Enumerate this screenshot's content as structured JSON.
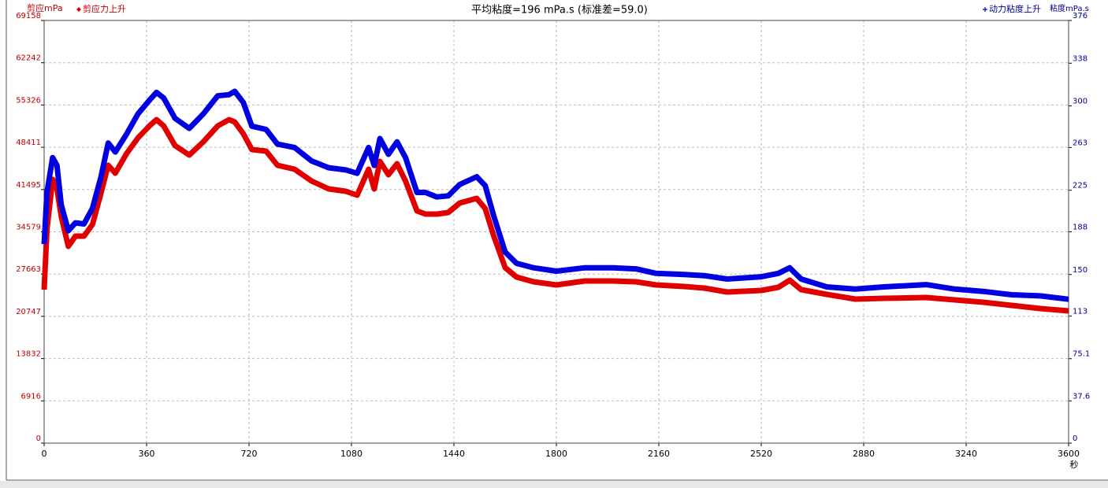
{
  "chart_data": {
    "type": "line",
    "title": "平均粘度=196 mPa.s  (标准差=59.0)",
    "ylabel": "剪应mPa",
    "y2label": "粘度mPa.s",
    "xlabel": "秒",
    "x": [
      0,
      10,
      30,
      45,
      60,
      85,
      110,
      140,
      170,
      200,
      225,
      250,
      290,
      330,
      370,
      395,
      420,
      460,
      510,
      560,
      610,
      650,
      670,
      700,
      730,
      780,
      820,
      880,
      940,
      1000,
      1060,
      1100,
      1140,
      1160,
      1180,
      1210,
      1240,
      1270,
      1310,
      1340,
      1380,
      1420,
      1460,
      1520,
      1550,
      1580,
      1620,
      1660,
      1720,
      1800,
      1900,
      2000,
      2080,
      2150,
      2250,
      2320,
      2400,
      2520,
      2580,
      2620,
      2660,
      2750,
      2850,
      2950,
      3100,
      3200,
      3300,
      3400,
      3500,
      3600
    ],
    "series": [
      {
        "name": "剪应力上升",
        "color": "#e00000",
        "marker": "diamond",
        "values": [
          25113,
          35000,
          43144,
          41598,
          37091,
          32197,
          33871,
          33871,
          35803,
          40954,
          45462,
          44174,
          47394,
          49970,
          51902,
          52932,
          51902,
          48682,
          47136,
          49326,
          51902,
          52932,
          52546,
          50614,
          48038,
          47780,
          45462,
          44818,
          42886,
          41598,
          41212,
          40567,
          44818,
          41598,
          46106,
          43917,
          45720,
          42886,
          37992,
          37477,
          37477,
          37735,
          39280,
          40052,
          38378,
          33871,
          28719,
          27174,
          26401,
          25886,
          26530,
          26530,
          26401,
          25886,
          25628,
          25371,
          24727,
          24984,
          25499,
          26659,
          25113,
          24341,
          23568,
          23697,
          23826,
          23439,
          23053,
          22538,
          22023,
          21636
        ]
      },
      {
        "name": "动力粘度上升",
        "color": "#0000e0",
        "marker": "plus",
        "axis": "y2",
        "values": [
          177,
          223,
          254,
          247,
          212,
          189,
          196,
          195,
          209,
          237,
          267,
          259,
          275,
          293,
          305,
          312,
          307,
          289,
          280,
          293,
          309,
          310,
          313,
          303,
          282,
          279,
          266,
          263,
          251,
          245,
          243,
          240,
          263,
          247,
          271,
          257,
          268,
          254,
          223,
          223,
          219,
          220,
          230,
          237,
          229,
          202,
          170,
          160,
          156,
          153,
          156,
          156,
          155,
          151,
          150,
          149,
          146,
          148,
          151,
          156,
          146,
          139,
          137,
          139,
          141,
          137,
          135,
          132,
          131,
          128
        ]
      }
    ],
    "xlim": [
      0,
      3600
    ],
    "xticks": [
      0,
      360,
      720,
      1080,
      1440,
      1800,
      2160,
      2520,
      2880,
      3240,
      3600
    ],
    "ylim": [
      0,
      69158
    ],
    "yticks": [
      0,
      6916,
      13832,
      20747,
      27663,
      34579,
      41495,
      48411,
      55326,
      62242,
      69158
    ],
    "y2lim": [
      0,
      376
    ],
    "y2ticks": [
      0,
      37.6,
      75.1,
      113,
      150,
      188,
      225,
      263,
      300,
      338,
      376
    ],
    "grid": true
  }
}
